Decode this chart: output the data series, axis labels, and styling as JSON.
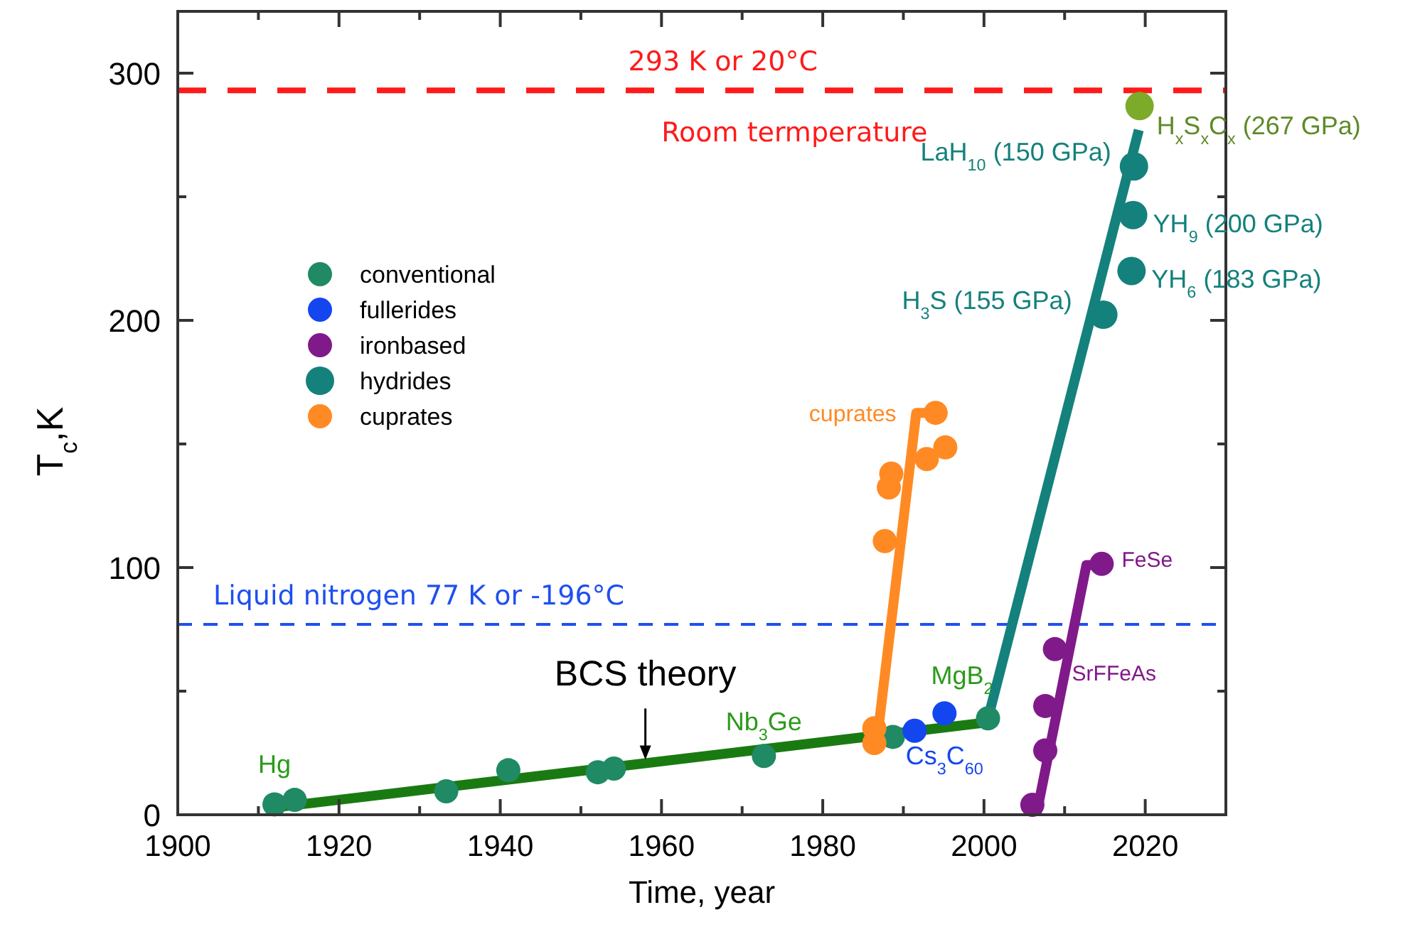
{
  "chart_data": {
    "type": "scatter",
    "xlabel": "Time, year",
    "ylabel": "T$_{c}$,K",
    "xlim": [
      1900,
      2030
    ],
    "ylim": [
      0,
      325
    ],
    "xticks": [
      1900,
      {
        "value": 1910,
        "label": null
      },
      1920,
      {
        "value": 1930,
        "label": null
      },
      1940,
      {
        "value": 1950,
        "label": null
      },
      1960,
      {
        "value": 1970,
        "label": null
      },
      1980,
      {
        "value": 1990,
        "label": null
      },
      2000,
      {
        "value": 2010,
        "label": null
      },
      2020
    ],
    "yticks": [
      0,
      {
        "value": 50,
        "label": null
      },
      100,
      {
        "value": 150,
        "label": null
      },
      200,
      {
        "value": 250,
        "label": null
      },
      300
    ],
    "grid": false,
    "legend": "top left",
    "marker": "circle",
    "series": [
      {
        "type": "line",
        "marker": "none",
        "color": "#1a7a12",
        "x": [
          1911.9,
          2000.5
        ],
        "values": [
          2.9,
          37.4
        ]
      },
      {
        "type": "line",
        "marker": "none",
        "color": "#ff8a24",
        "x": [
          1986.6,
          1991.6,
          1993
        ],
        "values": [
          26.5,
          162.6,
          162.6
        ]
      },
      {
        "type": "line",
        "marker": "none",
        "color": "#14817c",
        "x": [
          2000.5,
          2019.2
        ],
        "values": [
          39,
          277
        ]
      },
      {
        "type": "line",
        "marker": "none",
        "color": "#801a8a",
        "x": [
          2006.5,
          2012.7,
          2014
        ],
        "values": [
          0,
          101,
          101
        ]
      },
      {
        "name": "conventional",
        "color": "#1f8a63",
        "x": [
          1912,
          1914.5,
          1933.3,
          1941,
          1952.1,
          1954.1,
          1972.7,
          1988.7,
          2000.5
        ],
        "values": [
          4.2,
          6,
          9.5,
          18,
          17.2,
          18.7,
          23.8,
          31.5,
          39
        ]
      },
      {
        "name": "fullerides",
        "color": "#1446f0",
        "x": [
          1991.4,
          1995.1
        ],
        "values": [
          34,
          41
        ]
      },
      {
        "name": "ironbased",
        "color": "#801a8a",
        "x": [
          2006,
          2007.6,
          2007.6,
          2008.8,
          2014.6
        ],
        "values": [
          4,
          26,
          44,
          67,
          101.5
        ]
      },
      {
        "name": "hydrides",
        "color": "#14817c",
        "x": [
          2014.8,
          2018.3,
          2018.5,
          2018.6
        ],
        "values": [
          202.3,
          220,
          242.6,
          262.3
        ]
      },
      {
        "name": "cuprates",
        "color": "#ff8a24",
        "x": [
          1986.4,
          1986.4,
          1987.7,
          1988.2,
          1988.5,
          1992.9,
          1995.2,
          1994
        ],
        "values": [
          35,
          29,
          110.7,
          132.4,
          138,
          143.9,
          148.6,
          162.6
        ]
      },
      {
        "color": "#7cab2a",
        "x": [
          2019.3
        ],
        "values": [
          286.7
        ]
      }
    ],
    "ref_lines": [
      {
        "axis": "y",
        "value": 293,
        "label": "293 K or 20°C",
        "color": "#ff1a1a",
        "line_style": "dashed"
      },
      {
        "axis": "y",
        "value": 77,
        "label": "Liquid nitrogen 77 K or -196°C",
        "color": "#1f4ff0",
        "line_style": "dashed"
      }
    ],
    "annotations": [
      {
        "text": "Hg",
        "x": 1912,
        "y": 4.2
      },
      {
        "text": "Nb$_{3}$Ge",
        "x": 1972.7,
        "y": 23.8
      },
      {
        "text": "MgB$_{2}$",
        "x": 2000.5,
        "y": 39
      },
      {
        "text": "Cs$_{3}$C$_{60}$",
        "x": 1995.1,
        "y": 41
      },
      {
        "text": "cuprates",
        "x": 1991.6,
        "y": 162.6
      },
      {
        "text": "LaH$_{10}$ (150 GPa)",
        "x": 2018.6,
        "y": 262.3
      },
      {
        "text": "YH$_{9}$ (200 GPa)",
        "x": 2018.5,
        "y": 242.6
      },
      {
        "text": "YH$_{6}$ (183 GPa)",
        "x": 2018.3,
        "y": 220
      },
      {
        "text": "H$_{3}$S (155 GPa)",
        "x": 2014.8,
        "y": 202.3
      },
      {
        "text": "H$_{x}$S$_{x}$C$_{x}$ (267 GPa)",
        "x": 2019.3,
        "y": 286.7
      },
      {
        "text": "FeSe",
        "x": 2014.6,
        "y": 101.5
      },
      {
        "text": "SrFFeAs",
        "x": 2008.8,
        "y": 67
      },
      {
        "text": "BCS theory",
        "x": 1958,
        "y": 20
      },
      {
        "text": "Room termperature",
        "x": 1993,
        "y": 293
      }
    ]
  }
}
